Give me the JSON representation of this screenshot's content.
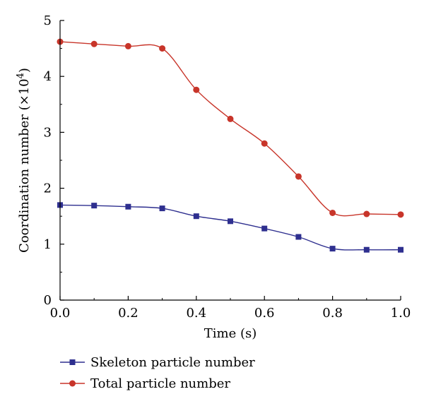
{
  "chart_data": {
    "type": "line",
    "xlabel": "Time (s)",
    "ylabel": "Coordination number (×10",
    "ylabel_superscript": "4",
    "ylabel_suffix": ")",
    "xlim": [
      0.0,
      1.0
    ],
    "ylim": [
      0,
      5
    ],
    "x_ticks": [
      0.0,
      0.2,
      0.4,
      0.6,
      0.8,
      1.0
    ],
    "x_tick_labels": [
      "0.0",
      "0.2",
      "0.4",
      "0.6",
      "0.8",
      "1.0"
    ],
    "y_ticks": [
      0,
      1,
      2,
      3,
      4,
      5
    ],
    "y_tick_labels": [
      "0",
      "1",
      "2",
      "3",
      "4",
      "5"
    ],
    "grid": false,
    "legend_position": "bottom-left, below plot",
    "x": [
      0.0,
      0.1,
      0.2,
      0.3,
      0.4,
      0.5,
      0.6,
      0.7,
      0.8,
      0.9,
      1.0
    ],
    "series": [
      {
        "name": "Skeleton particle number",
        "marker": "square",
        "color": "#2e2f8f",
        "values": [
          1.7,
          1.69,
          1.67,
          1.64,
          1.5,
          1.41,
          1.28,
          1.13,
          0.92,
          0.9,
          0.9
        ]
      },
      {
        "name": "Total particle number",
        "marker": "circle",
        "color": "#c8352a",
        "values": [
          4.62,
          4.58,
          4.54,
          4.5,
          3.76,
          3.24,
          2.8,
          2.21,
          1.56,
          1.54,
          1.53
        ]
      }
    ]
  }
}
